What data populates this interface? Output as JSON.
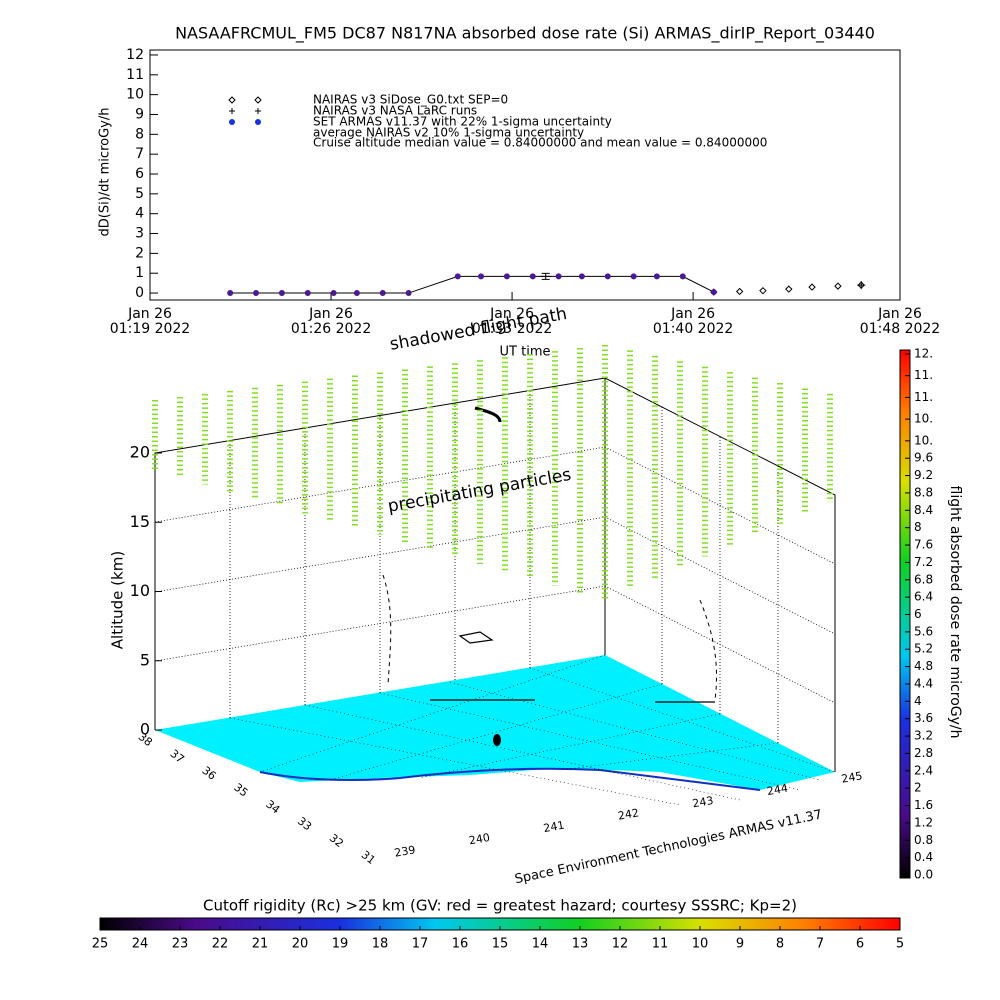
{
  "chart_data": [
    {
      "type": "line",
      "title": "NASAAFRCMUL_FM5 DC87 N817NA absorbed dose rate (Si) ARMAS_dirIP_Report_03440",
      "y_label": "dD(Si)/dt microGy/h",
      "x_label": "UT time",
      "xlim": [
        0,
        29
      ],
      "xticks": [
        {
          "value": 0,
          "label": "Jan 26\n01:19 2022"
        },
        {
          "value": 7,
          "label": "Jan 26\n01:26 2022"
        },
        {
          "value": 14,
          "label": "Jan 26\n01:33 2022"
        },
        {
          "value": 21,
          "label": "Jan 26\n01:40 2022"
        },
        {
          "value": 29,
          "label": "Jan 26\n01:48 2022"
        }
      ],
      "ylim": [
        -0.35,
        12.25
      ],
      "yticks": [
        0,
        1,
        2,
        3,
        4,
        5,
        6,
        7,
        8,
        9,
        10,
        11,
        12
      ],
      "series": [
        {
          "name": "NAIRAS v3 SiDose_G0.txt SEP=0",
          "color": "#000000",
          "marker": "diamond",
          "x": [
            21.8,
            22.8,
            23.7,
            24.7,
            25.6,
            26.6,
            27.5
          ],
          "values": [
            0.05,
            0.08,
            0.12,
            0.2,
            0.3,
            0.35,
            0.4
          ]
        },
        {
          "name": "NAIRAS v3 NASA LaRC runs",
          "color": "#000000",
          "marker": "plus",
          "x": [
            27.5
          ],
          "values": [
            0.4
          ]
        },
        {
          "name": "SET ARMAS v11.37 with 22% 1-sigma uncertainty",
          "color": "#4a1a90",
          "marker": "dot",
          "x": [
            3.1,
            4.1,
            5.1,
            6.1,
            7.1,
            8.0,
            9.0,
            10.0,
            11.9,
            12.8,
            13.8,
            14.8,
            15.8,
            16.7,
            17.7,
            18.7,
            19.6,
            20.6,
            21.8
          ],
          "values": [
            0,
            0,
            0,
            0,
            0,
            0,
            0,
            0,
            0.84,
            0.84,
            0.84,
            0.84,
            0.84,
            0.84,
            0.84,
            0.84,
            0.84,
            0.84,
            0.05
          ]
        },
        {
          "name": "average NAIRAS v2 10% 1-sigma uncertainty",
          "color": "#000000",
          "marker": "errorbar",
          "x": [
            15.3
          ],
          "values": [
            0.84
          ],
          "errors": [
            0.15
          ]
        }
      ],
      "annotation": "Cruise altitude median value = 0.84000000 and mean value = 0.84000000"
    },
    {
      "type": "surface3d",
      "annotations": [
        "shadowed flight path",
        "precipitating particles"
      ],
      "z_label": "Altitude (km)",
      "zlim": [
        0,
        20
      ],
      "zticks": [
        0,
        5,
        10,
        15,
        20
      ],
      "ylim": [
        38,
        31
      ],
      "yticks": [
        38,
        37,
        36,
        35,
        34,
        33,
        32,
        31
      ],
      "xlim": [
        239,
        245
      ],
      "xticks": [
        239,
        240,
        241,
        242,
        243,
        244,
        245
      ],
      "footer": "Space Environment Technologies ARMAS v11.37"
    },
    {
      "type": "colorbar",
      "label": "flight absorbed dose rate microGy/h",
      "ylim": [
        0,
        12
      ],
      "yticks": [
        {
          "value": 0,
          "label": "0.0"
        },
        0.4,
        0.8,
        1.2,
        1.6,
        2,
        2.4,
        2.8,
        3.2,
        3.6,
        4,
        4.4,
        4.8,
        5.2,
        5.6,
        6,
        6.4,
        6.8,
        7.2,
        7.6,
        8,
        8.4,
        8.8,
        9.2,
        9.6,
        {
          "value": 10,
          "label": "10."
        },
        {
          "value": 10.5,
          "label": "10."
        },
        {
          "value": 11,
          "label": "11."
        },
        {
          "value": 11.5,
          "label": "11."
        },
        {
          "value": 12,
          "label": "12."
        }
      ]
    },
    {
      "type": "colorbar",
      "title": "Cutoff rigidity (Rc) >25 km (GV: red = greatest hazard; courtesy SSSRC; Kp=2)",
      "xlim": [
        25,
        5
      ],
      "xticks": [
        25,
        24,
        23,
        22,
        21,
        20,
        19,
        18,
        17,
        16,
        15,
        14,
        13,
        12,
        11,
        10,
        9,
        8,
        7,
        6,
        5
      ]
    }
  ]
}
